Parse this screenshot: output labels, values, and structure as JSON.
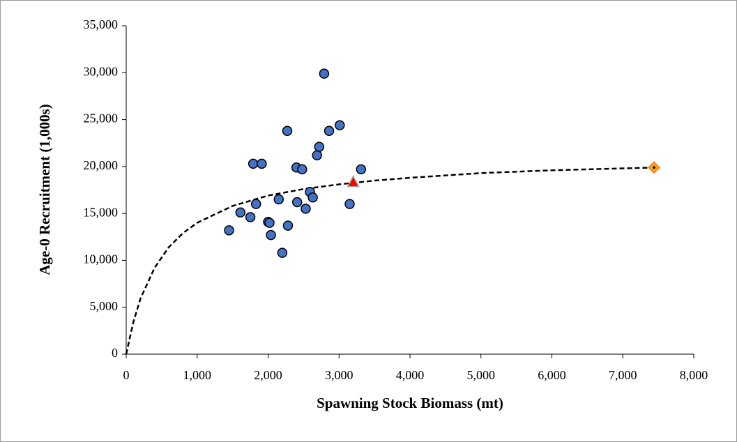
{
  "chart_data": {
    "type": "scatter",
    "x_label": "Spawning Stock Biomass (mt)",
    "y_label": "Age-0 Recruitment (1,000s)",
    "xlim": [
      0,
      8000
    ],
    "xticks": [
      0,
      {
        "value": 1000,
        "label": "1,000"
      },
      {
        "value": 2000,
        "label": "2,000"
      },
      {
        "value": 3000,
        "label": "3,000"
      },
      {
        "value": 4000,
        "label": "4,000"
      },
      {
        "value": 5000,
        "label": "5,000"
      },
      {
        "value": 6000,
        "label": "6,000"
      },
      {
        "value": 7000,
        "label": "7,000"
      },
      {
        "value": 8000,
        "label": "8,000"
      }
    ],
    "ylim": [
      0,
      35000
    ],
    "yticks": [
      0,
      {
        "value": 5000,
        "label": "5,000"
      },
      {
        "value": 10000,
        "label": "10,000"
      },
      {
        "value": 15000,
        "label": "15,000"
      },
      {
        "value": 20000,
        "label": "20,000"
      },
      {
        "value": 25000,
        "label": "25,000"
      },
      {
        "value": 30000,
        "label": "30,000"
      },
      {
        "value": 35000,
        "label": "35,000"
      }
    ],
    "grid": false,
    "series": [
      {
        "style": "dashed-line",
        "color": "#000000",
        "x": [
          0,
          100,
          200,
          400,
          600,
          800,
          1000,
          1500,
          2000,
          2500,
          3000,
          3500,
          4000,
          5000,
          6000,
          7000,
          7500
        ],
        "values": [
          0,
          3400,
          5900,
          9200,
          11400,
          12900,
          14000,
          15800,
          16900,
          17600,
          18100,
          18500,
          18800,
          19300,
          19600,
          19800,
          19900
        ]
      },
      {
        "style": "circle",
        "color": "#4472c4",
        "x": [
          1450,
          1610,
          1750,
          1790,
          1830,
          1910,
          2000,
          2020,
          2040,
          2150,
          2200,
          2270,
          2280,
          2400,
          2410,
          2480,
          2530,
          2590,
          2630,
          2690,
          2720,
          2790,
          2860,
          3010,
          3150,
          3310
        ],
        "values": [
          13200,
          15100,
          14600,
          20300,
          16000,
          20300,
          14100,
          14000,
          12700,
          16500,
          10800,
          23800,
          13700,
          19900,
          16200,
          19700,
          15500,
          17300,
          16700,
          21200,
          22100,
          29900,
          23800,
          24400,
          16000,
          19700
        ]
      },
      {
        "style": "triangle",
        "color": "#ff0000",
        "x": [
          3200
        ],
        "values": [
          18300
        ]
      },
      {
        "style": "diamond",
        "color": "#ffa500",
        "x": [
          7440
        ],
        "values": [
          19900
        ]
      }
    ]
  }
}
